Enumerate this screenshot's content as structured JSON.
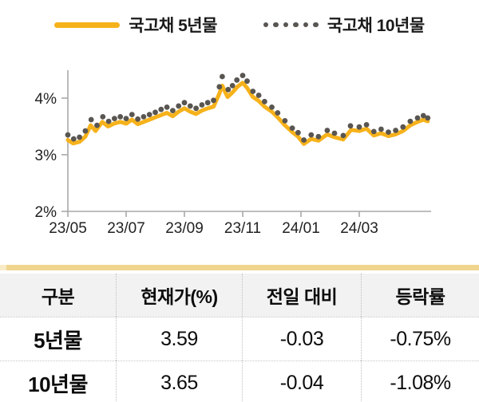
{
  "colors": {
    "series_5y": "#F6B21B",
    "series_10y": "#595551",
    "axis": "#A8A8A8",
    "table_accent_bar": "#F0D58F",
    "table_accent_bar_cap": "#F8ECC8",
    "table_header_bg": "#F2F2F2"
  },
  "chart_data": {
    "type": "line",
    "title": "",
    "xlabel": "",
    "ylabel": "",
    "y_unit": "%",
    "x_range_months": [
      "23/05",
      "24/04"
    ],
    "ylim": [
      2,
      4.5
    ],
    "grid": false,
    "legend_position": "top-center",
    "y_ticks": [
      {
        "value": 4,
        "label": "4%"
      },
      {
        "value": 3,
        "label": "3%"
      },
      {
        "value": 2,
        "label": "2%"
      }
    ],
    "x_ticks": [
      {
        "pos": 0,
        "label": "23/05"
      },
      {
        "pos": 2,
        "label": "23/07"
      },
      {
        "pos": 4,
        "label": "23/09"
      },
      {
        "pos": 6,
        "label": "23/11"
      },
      {
        "pos": 8,
        "label": "24/01"
      },
      {
        "pos": 10,
        "label": "24/03"
      }
    ],
    "series": [
      {
        "name": "국고채 5년물",
        "style": "solid",
        "color": "#F6B21B",
        "points": [
          [
            0.0,
            3.26
          ],
          [
            0.18,
            3.2
          ],
          [
            0.4,
            3.23
          ],
          [
            0.6,
            3.32
          ],
          [
            0.78,
            3.52
          ],
          [
            0.95,
            3.42
          ],
          [
            1.18,
            3.58
          ],
          [
            1.38,
            3.5
          ],
          [
            1.58,
            3.55
          ],
          [
            1.8,
            3.58
          ],
          [
            2.0,
            3.55
          ],
          [
            2.2,
            3.62
          ],
          [
            2.4,
            3.54
          ],
          [
            2.6,
            3.58
          ],
          [
            2.8,
            3.62
          ],
          [
            3.0,
            3.66
          ],
          [
            3.2,
            3.7
          ],
          [
            3.4,
            3.74
          ],
          [
            3.6,
            3.68
          ],
          [
            3.8,
            3.76
          ],
          [
            4.0,
            3.82
          ],
          [
            4.2,
            3.76
          ],
          [
            4.4,
            3.72
          ],
          [
            4.6,
            3.78
          ],
          [
            4.8,
            3.82
          ],
          [
            5.0,
            3.85
          ],
          [
            5.2,
            4.08
          ],
          [
            5.3,
            4.22
          ],
          [
            5.48,
            4.02
          ],
          [
            5.65,
            4.1
          ],
          [
            5.82,
            4.2
          ],
          [
            6.0,
            4.27
          ],
          [
            6.15,
            4.18
          ],
          [
            6.35,
            4.02
          ],
          [
            6.55,
            3.95
          ],
          [
            6.75,
            3.85
          ],
          [
            7.0,
            3.76
          ],
          [
            7.2,
            3.66
          ],
          [
            7.45,
            3.52
          ],
          [
            7.7,
            3.4
          ],
          [
            7.9,
            3.32
          ],
          [
            8.1,
            3.19
          ],
          [
            8.35,
            3.28
          ],
          [
            8.6,
            3.25
          ],
          [
            8.9,
            3.36
          ],
          [
            9.15,
            3.31
          ],
          [
            9.45,
            3.27
          ],
          [
            9.72,
            3.44
          ],
          [
            10.0,
            3.42
          ],
          [
            10.25,
            3.46
          ],
          [
            10.5,
            3.34
          ],
          [
            10.75,
            3.38
          ],
          [
            11.0,
            3.33
          ],
          [
            11.25,
            3.36
          ],
          [
            11.5,
            3.42
          ],
          [
            11.75,
            3.52
          ],
          [
            12.0,
            3.58
          ],
          [
            12.2,
            3.62
          ],
          [
            12.35,
            3.59
          ]
        ]
      },
      {
        "name": "국고채 10년물",
        "style": "dotted",
        "color": "#595551",
        "points": [
          [
            0.0,
            3.35
          ],
          [
            0.2,
            3.28
          ],
          [
            0.4,
            3.31
          ],
          [
            0.6,
            3.42
          ],
          [
            0.8,
            3.62
          ],
          [
            1.0,
            3.52
          ],
          [
            1.2,
            3.67
          ],
          [
            1.4,
            3.59
          ],
          [
            1.6,
            3.64
          ],
          [
            1.8,
            3.67
          ],
          [
            2.0,
            3.64
          ],
          [
            2.2,
            3.71
          ],
          [
            2.4,
            3.63
          ],
          [
            2.6,
            3.67
          ],
          [
            2.8,
            3.71
          ],
          [
            3.0,
            3.75
          ],
          [
            3.2,
            3.8
          ],
          [
            3.4,
            3.84
          ],
          [
            3.6,
            3.78
          ],
          [
            3.8,
            3.86
          ],
          [
            4.0,
            3.92
          ],
          [
            4.2,
            3.86
          ],
          [
            4.4,
            3.82
          ],
          [
            4.6,
            3.88
          ],
          [
            4.8,
            3.92
          ],
          [
            5.0,
            3.96
          ],
          [
            5.2,
            4.2
          ],
          [
            5.3,
            4.38
          ],
          [
            5.5,
            4.15
          ],
          [
            5.65,
            4.22
          ],
          [
            5.8,
            4.32
          ],
          [
            6.0,
            4.4
          ],
          [
            6.15,
            4.3
          ],
          [
            6.35,
            4.12
          ],
          [
            6.55,
            4.05
          ],
          [
            6.75,
            3.94
          ],
          [
            7.0,
            3.84
          ],
          [
            7.2,
            3.74
          ],
          [
            7.45,
            3.6
          ],
          [
            7.7,
            3.47
          ],
          [
            7.9,
            3.39
          ],
          [
            8.1,
            3.26
          ],
          [
            8.35,
            3.35
          ],
          [
            8.6,
            3.32
          ],
          [
            8.9,
            3.43
          ],
          [
            9.15,
            3.38
          ],
          [
            9.45,
            3.34
          ],
          [
            9.7,
            3.51
          ],
          [
            10.0,
            3.49
          ],
          [
            10.25,
            3.53
          ],
          [
            10.5,
            3.41
          ],
          [
            10.75,
            3.45
          ],
          [
            11.0,
            3.4
          ],
          [
            11.25,
            3.43
          ],
          [
            11.5,
            3.49
          ],
          [
            11.75,
            3.59
          ],
          [
            12.0,
            3.65
          ],
          [
            12.2,
            3.69
          ],
          [
            12.35,
            3.65
          ]
        ]
      }
    ]
  },
  "table": {
    "headers": [
      "구분",
      "현재가(%)",
      "전일 대비",
      "등락률"
    ],
    "rows": [
      {
        "label": "5년물",
        "values": [
          "3.59",
          "-0.03",
          "-0.75%"
        ]
      },
      {
        "label": "10년물",
        "values": [
          "3.65",
          "-0.04",
          "-1.08%"
        ]
      }
    ]
  }
}
